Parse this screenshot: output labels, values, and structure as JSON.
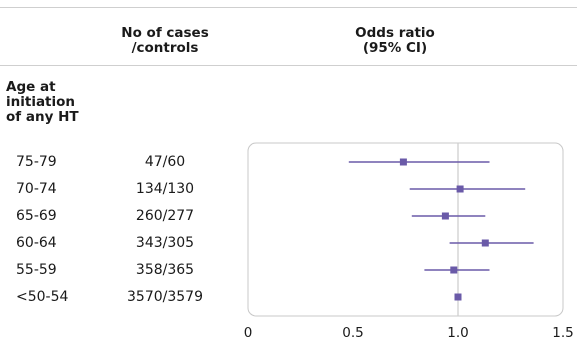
{
  "header": {
    "col_cases": "No of cases\n/controls",
    "col_or": "Odds ratio\n(95% CI)"
  },
  "group_title": "Age at\ninitiation\nof any HT",
  "colors": {
    "marker": "#6a5aa8",
    "line": "#6a5aa8",
    "reference_line": "#cccccc",
    "panel_border": "#c8c8c8",
    "rule": "#cfcfcf"
  },
  "chart_data": {
    "type": "forest",
    "xlim": [
      0,
      1.5
    ],
    "reference_value": 1.0,
    "x_ticks": [
      0,
      0.5,
      1.0,
      1.5
    ],
    "x_tick_labels": [
      "0",
      "0.5",
      "1.0",
      "1.5"
    ],
    "rows": [
      {
        "label": "75-79",
        "cases_controls": "47/60",
        "or": 0.74,
        "ci_low": 0.48,
        "ci_high": 1.15
      },
      {
        "label": "70-74",
        "cases_controls": "134/130",
        "or": 1.01,
        "ci_low": 0.77,
        "ci_high": 1.32
      },
      {
        "label": "65-69",
        "cases_controls": "260/277",
        "or": 0.94,
        "ci_low": 0.78,
        "ci_high": 1.13
      },
      {
        "label": "60-64",
        "cases_controls": "343/305",
        "or": 1.13,
        "ci_low": 0.96,
        "ci_high": 1.36
      },
      {
        "label": "55-59",
        "cases_controls": "358/365",
        "or": 0.98,
        "ci_low": 0.84,
        "ci_high": 1.15
      },
      {
        "label": "<50-54",
        "cases_controls": "3570/3579",
        "or": 1.0,
        "ci_low": 1.0,
        "ci_high": 1.0
      }
    ]
  }
}
